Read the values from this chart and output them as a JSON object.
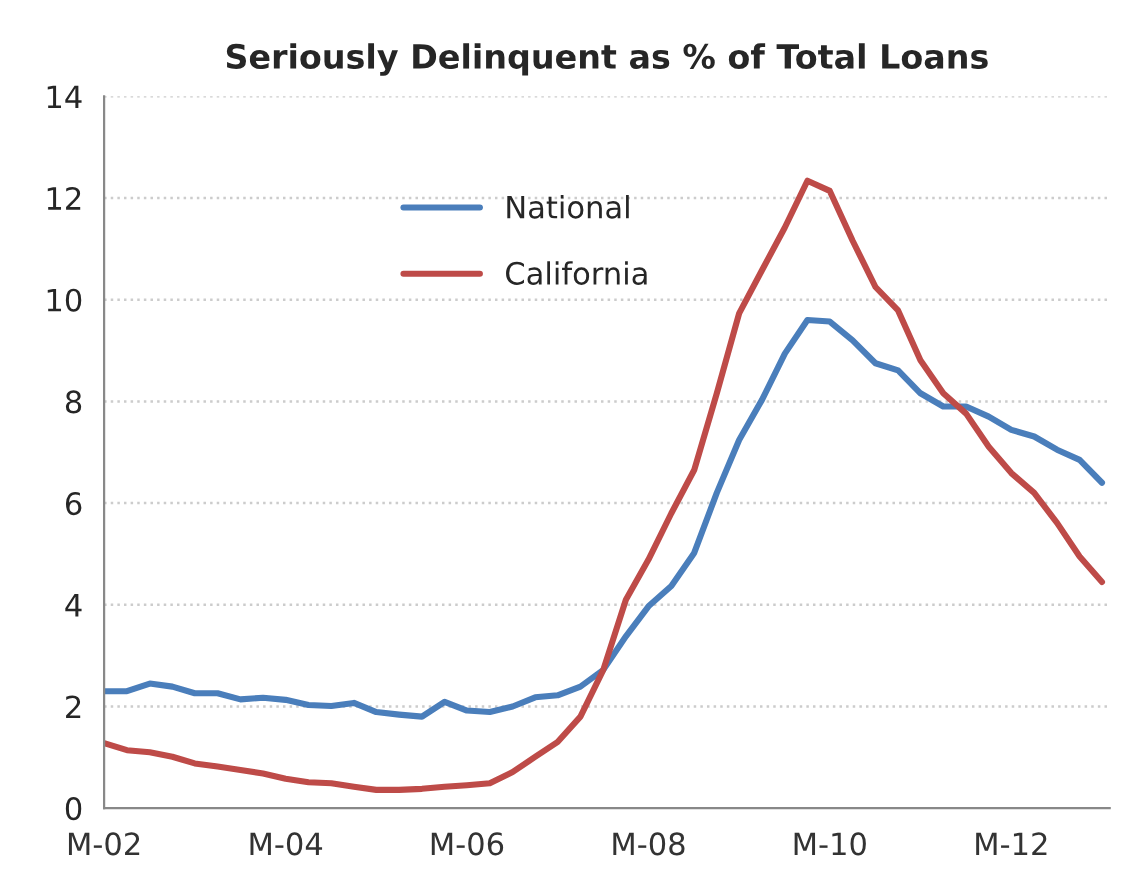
{
  "chart_data": {
    "type": "line",
    "title": "Seriously Delinquent as % of Total Loans",
    "x": [
      "2002-03",
      "2002-06",
      "2002-09",
      "2002-12",
      "2003-03",
      "2003-06",
      "2003-09",
      "2003-12",
      "2004-03",
      "2004-06",
      "2004-09",
      "2004-12",
      "2005-03",
      "2005-06",
      "2005-09",
      "2005-12",
      "2006-03",
      "2006-06",
      "2006-09",
      "2006-12",
      "2007-03",
      "2007-06",
      "2007-09",
      "2007-12",
      "2008-03",
      "2008-06",
      "2008-09",
      "2008-12",
      "2009-03",
      "2009-06",
      "2009-09",
      "2009-12",
      "2010-03",
      "2010-06",
      "2010-09",
      "2010-12",
      "2011-03",
      "2011-06",
      "2011-09",
      "2011-12",
      "2012-03",
      "2012-06",
      "2012-09",
      "2012-12",
      "2013-03"
    ],
    "series": [
      {
        "name": "National",
        "color": "#4a7ebb",
        "values": [
          2.3,
          2.3,
          2.45,
          2.39,
          2.26,
          2.26,
          2.14,
          2.17,
          2.13,
          2.03,
          2.01,
          2.07,
          1.89,
          1.84,
          1.8,
          2.09,
          1.92,
          1.89,
          2.0,
          2.18,
          2.22,
          2.39,
          2.72,
          3.38,
          3.97,
          4.37,
          5.02,
          6.2,
          7.24,
          8.03,
          8.94,
          9.6,
          9.57,
          9.2,
          8.75,
          8.61,
          8.16,
          7.9,
          7.9,
          7.7,
          7.44,
          7.31,
          7.05,
          6.85,
          6.4
        ]
      },
      {
        "name": "California",
        "color": "#be4b48",
        "values": [
          1.28,
          1.14,
          1.1,
          1.01,
          0.88,
          0.82,
          0.75,
          0.68,
          0.58,
          0.51,
          0.49,
          0.42,
          0.36,
          0.36,
          0.38,
          0.42,
          0.45,
          0.49,
          0.71,
          1.01,
          1.3,
          1.8,
          2.72,
          4.1,
          4.89,
          5.8,
          6.65,
          8.16,
          9.73,
          10.58,
          11.42,
          12.34,
          12.14,
          11.16,
          10.25,
          9.79,
          8.81,
          8.16,
          7.76,
          7.11,
          6.59,
          6.2,
          5.61,
          4.95,
          4.45
        ]
      }
    ],
    "xlim": [
      "2002-03",
      "2013-04"
    ],
    "xticks": [
      {
        "value": "2002-03",
        "label": "M-02"
      },
      {
        "value": "2004-03",
        "label": "M-04"
      },
      {
        "value": "2006-03",
        "label": "M-06"
      },
      {
        "value": "2008-03",
        "label": "M-08"
      },
      {
        "value": "2010-03",
        "label": "M-10"
      },
      {
        "value": "2012-03",
        "label": "M-12"
      }
    ],
    "ylim": [
      0,
      14
    ],
    "yticks": [
      0,
      2,
      4,
      6,
      8,
      10,
      12,
      14
    ],
    "grid": "y",
    "legend": "top",
    "marker": "none",
    "line_style": "solid"
  }
}
